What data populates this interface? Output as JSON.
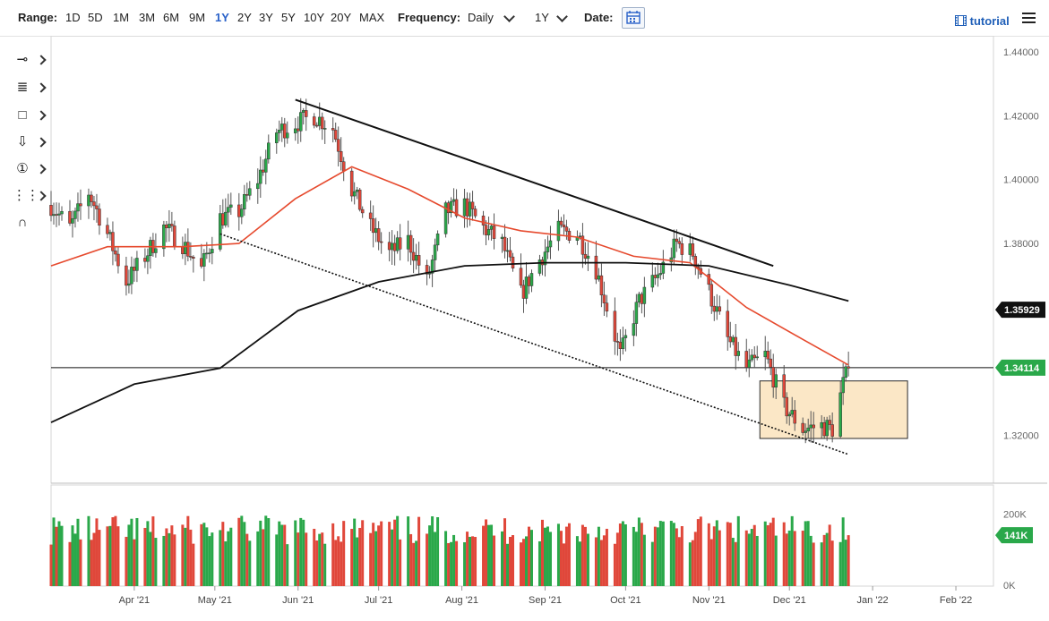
{
  "toolbar": {
    "range_label": "Range:",
    "ranges": [
      "1D",
      "5D",
      "1M",
      "3M",
      "6M",
      "9M",
      "1Y",
      "2Y",
      "3Y",
      "5Y",
      "10Y",
      "20Y",
      "MAX"
    ],
    "active_range": "1Y",
    "frequency_label": "Frequency:",
    "frequency_value": "Daily",
    "period_value": "1Y",
    "date_label": "Date:",
    "tutorial_label": "tutorial"
  },
  "icons": {
    "date": "calendar-icon",
    "tutorial": "film-icon",
    "menu": "hamburger-menu-icon",
    "tools": [
      "crosshair-tool-icon",
      "fibonacci-tool-icon",
      "rectangle-tool-icon",
      "arrow-down-icon",
      "annotation-number-icon",
      "pattern-tool-icon",
      "magnet-icon"
    ]
  },
  "colors": {
    "up": "#2aa84a",
    "down": "#e0473a",
    "ma_fast": "#e64a2e",
    "ma_slow": "#111111",
    "box_fill": "#fbe7c6",
    "box_stroke": "#2a2a2a",
    "price_tag": "#2aa84a",
    "last_ma_tag": "#111111"
  },
  "chart_data": {
    "type": "candlestick",
    "x_axis_labels": [
      "Apr '21",
      "May '21",
      "Jun '21",
      "Jul '21",
      "Aug '21",
      "Sep '21",
      "Oct '21",
      "Nov '21",
      "Dec '21",
      "Jan '22",
      "Feb '22"
    ],
    "x_start": "2021-03-01",
    "x_end": "2022-02-15",
    "price_axis": {
      "min": 1.305,
      "max": 1.445,
      "ticks": [
        "1.44000",
        "1.42000",
        "1.40000",
        "1.38000",
        "1.36000",
        "1.34000",
        "1.32000"
      ]
    },
    "price_tags": {
      "slow_ma": "1.35929",
      "last_price": "1.34114"
    },
    "horizontal_line": 1.34114,
    "volume_axis": {
      "max": 280000,
      "tick_labels": [
        "200K",
        "0K"
      ],
      "last_tag": "141K"
    },
    "close_anchors": [
      [
        "2021-03-01",
        1.392
      ],
      [
        "2021-03-08",
        1.385
      ],
      [
        "2021-03-15",
        1.396
      ],
      [
        "2021-03-22",
        1.383
      ],
      [
        "2021-03-29",
        1.368
      ],
      [
        "2021-04-05",
        1.376
      ],
      [
        "2021-04-12",
        1.385
      ],
      [
        "2021-04-19",
        1.38
      ],
      [
        "2021-04-26",
        1.372
      ],
      [
        "2021-05-03",
        1.388
      ],
      [
        "2021-05-10",
        1.39
      ],
      [
        "2021-05-17",
        1.4
      ],
      [
        "2021-05-24",
        1.415
      ],
      [
        "2021-06-01",
        1.418
      ],
      [
        "2021-06-07",
        1.42
      ],
      [
        "2021-06-14",
        1.416
      ],
      [
        "2021-06-21",
        1.397
      ],
      [
        "2021-06-28",
        1.385
      ],
      [
        "2021-07-05",
        1.377
      ],
      [
        "2021-07-12",
        1.381
      ],
      [
        "2021-07-19",
        1.368
      ],
      [
        "2021-07-26",
        1.39
      ],
      [
        "2021-08-02",
        1.392
      ],
      [
        "2021-08-09",
        1.385
      ],
      [
        "2021-08-16",
        1.38
      ],
      [
        "2021-08-23",
        1.364
      ],
      [
        "2021-08-30",
        1.375
      ],
      [
        "2021-09-06",
        1.384
      ],
      [
        "2021-09-13",
        1.383
      ],
      [
        "2021-09-20",
        1.372
      ],
      [
        "2021-09-29",
        1.345
      ],
      [
        "2021-10-06",
        1.362
      ],
      [
        "2021-10-13",
        1.37
      ],
      [
        "2021-10-20",
        1.38
      ],
      [
        "2021-10-26",
        1.377
      ],
      [
        "2021-11-01",
        1.365
      ],
      [
        "2021-11-08",
        1.35
      ],
      [
        "2021-11-15",
        1.341
      ],
      [
        "2021-11-22",
        1.345
      ],
      [
        "2021-11-29",
        1.329
      ],
      [
        "2021-12-06",
        1.322
      ],
      [
        "2021-12-13",
        1.323
      ],
      [
        "2021-12-17",
        1.322
      ],
      [
        "2021-12-21",
        1.336
      ],
      [
        "2021-12-23",
        1.341
      ]
    ],
    "fast_ma": [
      [
        "2021-03-01",
        1.373
      ],
      [
        "2021-03-22",
        1.379
      ],
      [
        "2021-04-19",
        1.379
      ],
      [
        "2021-05-10",
        1.38
      ],
      [
        "2021-05-31",
        1.394
      ],
      [
        "2021-06-21",
        1.404
      ],
      [
        "2021-07-12",
        1.397
      ],
      [
        "2021-08-02",
        1.388
      ],
      [
        "2021-08-23",
        1.384
      ],
      [
        "2021-09-13",
        1.382
      ],
      [
        "2021-10-04",
        1.376
      ],
      [
        "2021-10-25",
        1.374
      ],
      [
        "2021-11-15",
        1.36
      ],
      [
        "2021-12-06",
        1.35
      ],
      [
        "2021-12-23",
        1.342
      ]
    ],
    "slow_ma": [
      [
        "2021-03-01",
        1.324
      ],
      [
        "2021-04-01",
        1.336
      ],
      [
        "2021-05-03",
        1.341
      ],
      [
        "2021-06-01",
        1.359
      ],
      [
        "2021-07-01",
        1.368
      ],
      [
        "2021-08-02",
        1.373
      ],
      [
        "2021-09-01",
        1.374
      ],
      [
        "2021-10-01",
        1.374
      ],
      [
        "2021-11-01",
        1.373
      ],
      [
        "2021-12-01",
        1.367
      ],
      [
        "2021-12-23",
        1.362
      ]
    ],
    "trendlines": [
      {
        "style": "solid",
        "from": [
          "2021-05-31",
          1.425
        ],
        "to": [
          "2021-11-25",
          1.373
        ]
      },
      {
        "style": "dotted",
        "from": [
          "2021-05-03",
          1.383
        ],
        "to": [
          "2021-12-23",
          1.314
        ]
      }
    ],
    "consolidation_box": {
      "from": "2021-11-20",
      "to": "2022-01-14",
      "low": 1.319,
      "high": 1.337
    }
  }
}
